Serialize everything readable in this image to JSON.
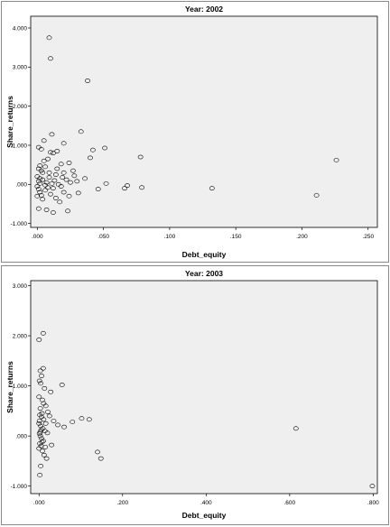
{
  "chart_data": [
    {
      "type": "scatter",
      "title": "Year: 2002",
      "xlabel": "Debt_equity",
      "ylabel": "Share_returns",
      "xlim": [
        -0.005,
        0.257
      ],
      "ylim": [
        -1.1,
        4.3
      ],
      "xticks": [
        0.0,
        0.05,
        0.1,
        0.15,
        0.2,
        0.25
      ],
      "xtick_labels": [
        ".000",
        ".050",
        ".100",
        ".150",
        ".200",
        ".250"
      ],
      "yticks": [
        -1,
        0,
        1,
        2,
        3,
        4
      ],
      "ytick_labels": [
        "-1.000",
        ".000",
        "1.000",
        "2.000",
        "3.000",
        "4.000"
      ],
      "grid": false,
      "legend": "none",
      "plot_background": "#efefef",
      "points": [
        [
          0.009,
          3.75
        ],
        [
          0.01,
          3.22
        ],
        [
          0.038,
          2.65
        ],
        [
          0.033,
          1.35
        ],
        [
          0.011,
          1.28
        ],
        [
          0.005,
          1.12
        ],
        [
          0.02,
          1.05
        ],
        [
          0.001,
          0.95
        ],
        [
          0.003,
          0.9
        ],
        [
          0.015,
          0.85
        ],
        [
          0.01,
          0.82
        ],
        [
          0.012,
          0.8
        ],
        [
          0.042,
          0.88
        ],
        [
          0.051,
          0.93
        ],
        [
          0.078,
          0.7
        ],
        [
          0.04,
          0.68
        ],
        [
          0.024,
          0.55
        ],
        [
          0.018,
          0.52
        ],
        [
          0.002,
          0.48
        ],
        [
          0.006,
          0.45
        ],
        [
          0.001,
          0.4
        ],
        [
          0.003,
          0.35
        ],
        [
          0.009,
          0.3
        ],
        [
          0.014,
          0.25
        ],
        [
          0.02,
          0.3
        ],
        [
          0.028,
          0.22
        ],
        [
          0.036,
          0.15
        ],
        [
          0.0,
          0.2
        ],
        [
          0.002,
          0.15
        ],
        [
          0.004,
          0.12
        ],
        [
          0.007,
          0.05
        ],
        [
          0.011,
          0.02
        ],
        [
          0.016,
          0.0
        ],
        [
          0.025,
          0.05
        ],
        [
          0.03,
          0.08
        ],
        [
          0.052,
          0.02
        ],
        [
          0.046,
          -0.12
        ],
        [
          0.066,
          -0.1
        ],
        [
          0.068,
          -0.03
        ],
        [
          0.079,
          -0.08
        ],
        [
          0.132,
          -0.1
        ],
        [
          0.211,
          -0.28
        ],
        [
          0.226,
          0.62
        ],
        [
          0.0,
          -0.05
        ],
        [
          0.001,
          -0.12
        ],
        [
          0.002,
          -0.2
        ],
        [
          0.003,
          -0.28
        ],
        [
          0.0,
          -0.3
        ],
        [
          0.004,
          -0.38
        ],
        [
          0.001,
          -0.62
        ],
        [
          0.007,
          -0.65
        ],
        [
          0.012,
          -0.72
        ],
        [
          0.023,
          -0.68
        ],
        [
          0.017,
          -0.45
        ],
        [
          0.014,
          -0.35
        ],
        [
          0.01,
          -0.25
        ],
        [
          0.02,
          -0.2
        ],
        [
          0.031,
          -0.22
        ],
        [
          0.006,
          -0.15
        ],
        [
          0.008,
          -0.08
        ],
        [
          0.013,
          0.1
        ],
        [
          0.019,
          0.18
        ],
        [
          0.022,
          0.12
        ],
        [
          0.027,
          0.35
        ],
        [
          0.005,
          0.6
        ],
        [
          0.008,
          0.65
        ],
        [
          0.004,
          0.3
        ],
        [
          0.015,
          0.4
        ],
        [
          0.002,
          0.02
        ],
        [
          0.006,
          -0.02
        ],
        [
          0.009,
          0.18
        ],
        [
          0.012,
          -0.1
        ],
        [
          0.018,
          -0.05
        ],
        [
          0.024,
          -0.3
        ],
        [
          0.001,
          0.08
        ]
      ]
    },
    {
      "type": "scatter",
      "title": "Year: 2003",
      "xlabel": "Debt_equity",
      "ylabel": "Share_returns",
      "xlim": [
        -0.02,
        0.81
      ],
      "ylim": [
        -1.15,
        3.1
      ],
      "xticks": [
        0.0,
        0.2,
        0.4,
        0.6,
        0.8
      ],
      "xtick_labels": [
        ".000",
        ".200",
        ".400",
        ".600",
        ".800"
      ],
      "yticks": [
        -1,
        0,
        1,
        2,
        3
      ],
      "ytick_labels": [
        "-1.000",
        ".000",
        "1.000",
        "2.000",
        "3.000"
      ],
      "grid": false,
      "legend": "none",
      "plot_background": "#efefef",
      "points": [
        [
          0.01,
          2.05
        ],
        [
          0.0,
          1.92
        ],
        [
          0.01,
          1.35
        ],
        [
          0.003,
          1.3
        ],
        [
          0.006,
          1.2
        ],
        [
          0.001,
          1.1
        ],
        [
          0.004,
          1.05
        ],
        [
          0.013,
          0.95
        ],
        [
          0.055,
          1.02
        ],
        [
          0.028,
          0.88
        ],
        [
          0.0,
          0.78
        ],
        [
          0.008,
          0.72
        ],
        [
          0.016,
          0.6
        ],
        [
          0.003,
          0.55
        ],
        [
          0.021,
          0.48
        ],
        [
          0.002,
          0.42
        ],
        [
          0.006,
          0.38
        ],
        [
          0.011,
          0.33
        ],
        [
          0.035,
          0.3
        ],
        [
          0.08,
          0.28
        ],
        [
          0.102,
          0.35
        ],
        [
          0.12,
          0.33
        ],
        [
          0.0,
          0.25
        ],
        [
          0.004,
          0.2
        ],
        [
          0.009,
          0.15
        ],
        [
          0.014,
          0.1
        ],
        [
          0.02,
          0.06
        ],
        [
          0.045,
          0.22
        ],
        [
          0.06,
          0.18
        ],
        [
          0.001,
          0.05
        ],
        [
          0.003,
          0.0
        ],
        [
          0.006,
          -0.05
        ],
        [
          0.01,
          -0.1
        ],
        [
          0.002,
          -0.15
        ],
        [
          0.005,
          -0.2
        ],
        [
          0.015,
          -0.22
        ],
        [
          0.03,
          -0.18
        ],
        [
          0.0,
          -0.25
        ],
        [
          0.008,
          -0.3
        ],
        [
          0.012,
          -0.38
        ],
        [
          0.018,
          -0.45
        ],
        [
          0.14,
          -0.32
        ],
        [
          0.148,
          -0.45
        ],
        [
          0.004,
          -0.6
        ],
        [
          0.002,
          -0.78
        ],
        [
          0.615,
          0.15
        ],
        [
          0.798,
          -1.0
        ],
        [
          0.007,
          0.45
        ],
        [
          0.011,
          0.65
        ],
        [
          0.001,
          0.3
        ],
        [
          0.003,
          0.08
        ],
        [
          0.016,
          0.25
        ],
        [
          0.025,
          0.4
        ],
        [
          0.007,
          -0.12
        ],
        [
          0.005,
          0.12
        ]
      ]
    }
  ]
}
